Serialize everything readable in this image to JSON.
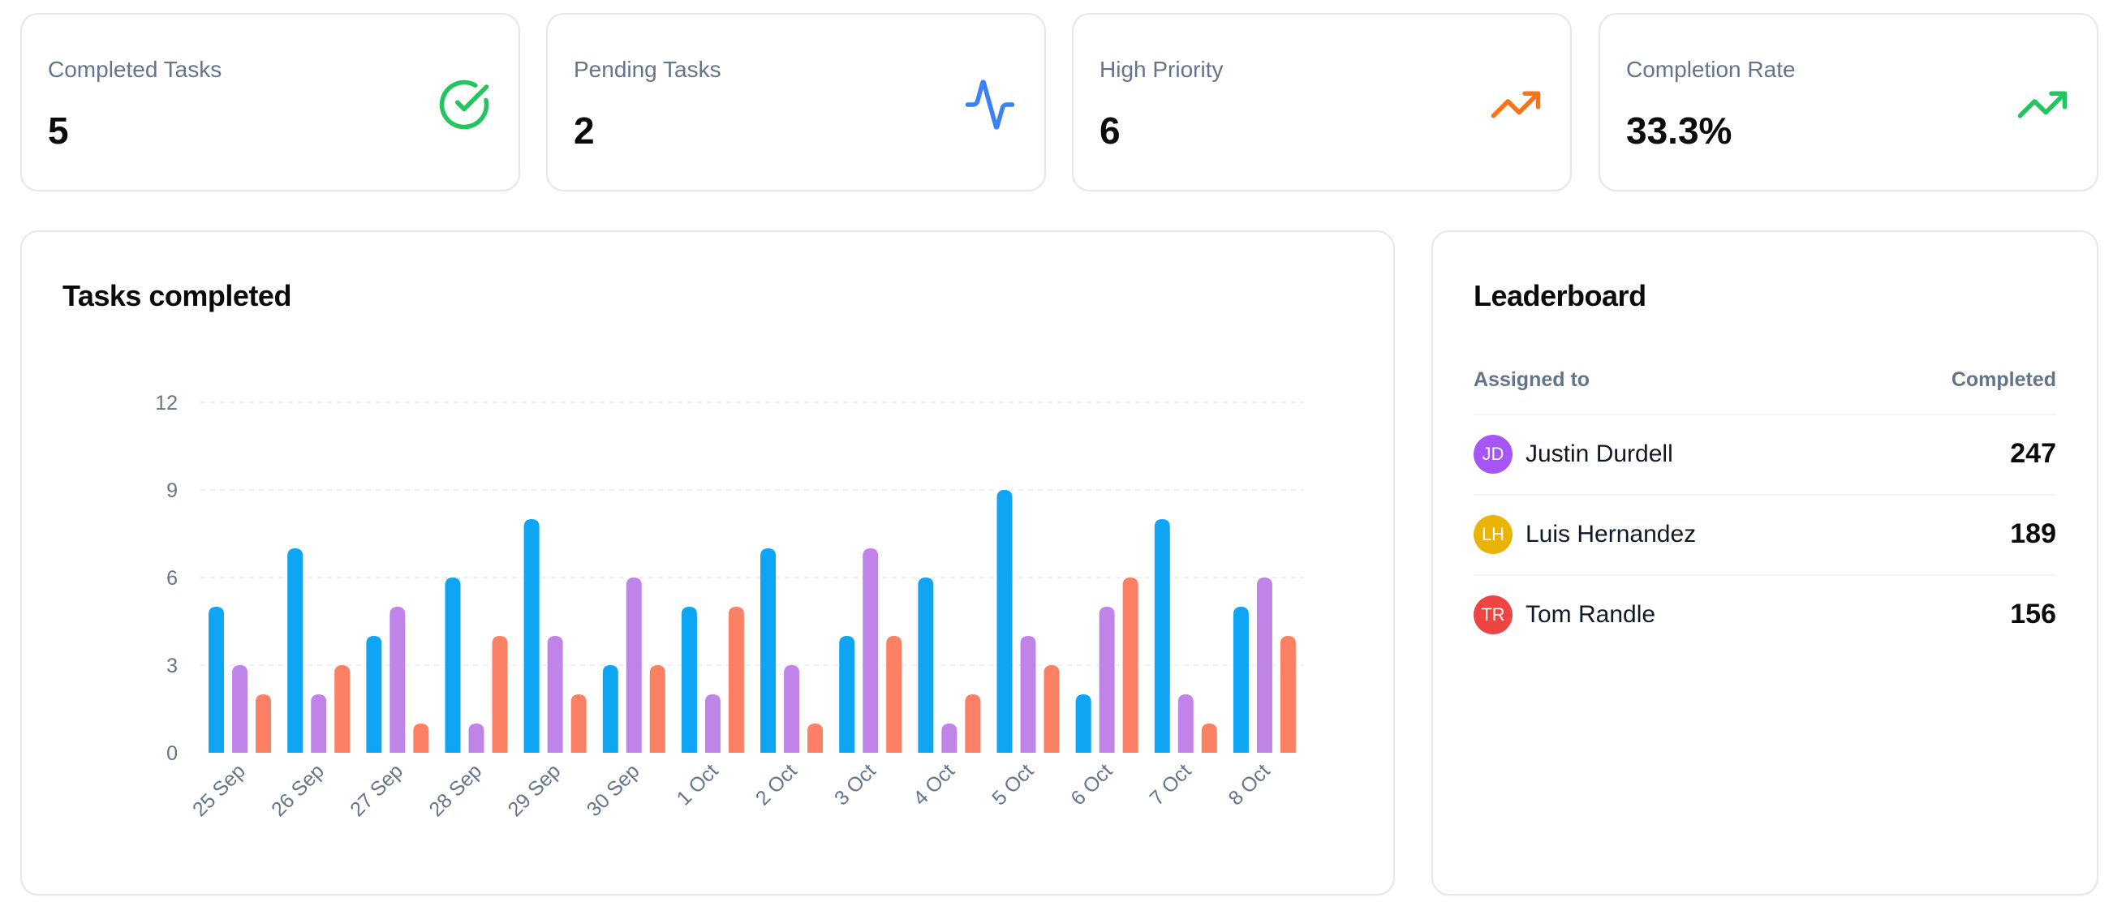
{
  "stats": [
    {
      "label": "Completed Tasks",
      "value": "5",
      "icon": "check-circle-icon",
      "color": "#22c55e"
    },
    {
      "label": "Pending Tasks",
      "value": "2",
      "icon": "activity-icon",
      "color": "#3b82f6"
    },
    {
      "label": "High Priority",
      "value": "6",
      "icon": "trending-up-icon",
      "color": "#f97316"
    },
    {
      "label": "Completion Rate",
      "value": "33.3%",
      "icon": "trending-up-icon",
      "color": "#22c55e"
    }
  ],
  "chart": {
    "title": "Tasks completed"
  },
  "chart_data": {
    "type": "bar",
    "categories": [
      "25 Sep",
      "26 Sep",
      "27 Sep",
      "28 Sep",
      "29 Sep",
      "30 Sep",
      "1 Oct",
      "2 Oct",
      "3 Oct",
      "4 Oct",
      "5 Oct",
      "6 Oct",
      "7 Oct",
      "8 Oct"
    ],
    "series": [
      {
        "values": [
          5,
          7,
          4,
          6,
          8,
          3,
          5,
          7,
          4,
          6,
          9,
          2,
          8,
          5
        ],
        "color": "#0ea5f5"
      },
      {
        "values": [
          3,
          2,
          5,
          1,
          4,
          6,
          2,
          3,
          7,
          1,
          4,
          5,
          2,
          6
        ],
        "color": "#c084e8"
      },
      {
        "values": [
          2,
          3,
          1,
          4,
          2,
          3,
          5,
          1,
          4,
          2,
          3,
          6,
          1,
          4
        ],
        "color": "#fb8064"
      }
    ],
    "yticks": [
      0,
      3,
      6,
      9,
      12
    ],
    "ylim": [
      0,
      12
    ],
    "grid": true,
    "legend": "none"
  },
  "leaderboard": {
    "title": "Leaderboard",
    "col_assigned": "Assigned to",
    "col_completed": "Completed",
    "rows": [
      {
        "initials": "JD",
        "name": "Justin Durdell",
        "completed": "247",
        "color": "#a855f7"
      },
      {
        "initials": "LH",
        "name": "Luis Hernandez",
        "completed": "189",
        "color": "#eab308"
      },
      {
        "initials": "TR",
        "name": "Tom Randle",
        "completed": "156",
        "color": "#ef4444"
      }
    ]
  }
}
